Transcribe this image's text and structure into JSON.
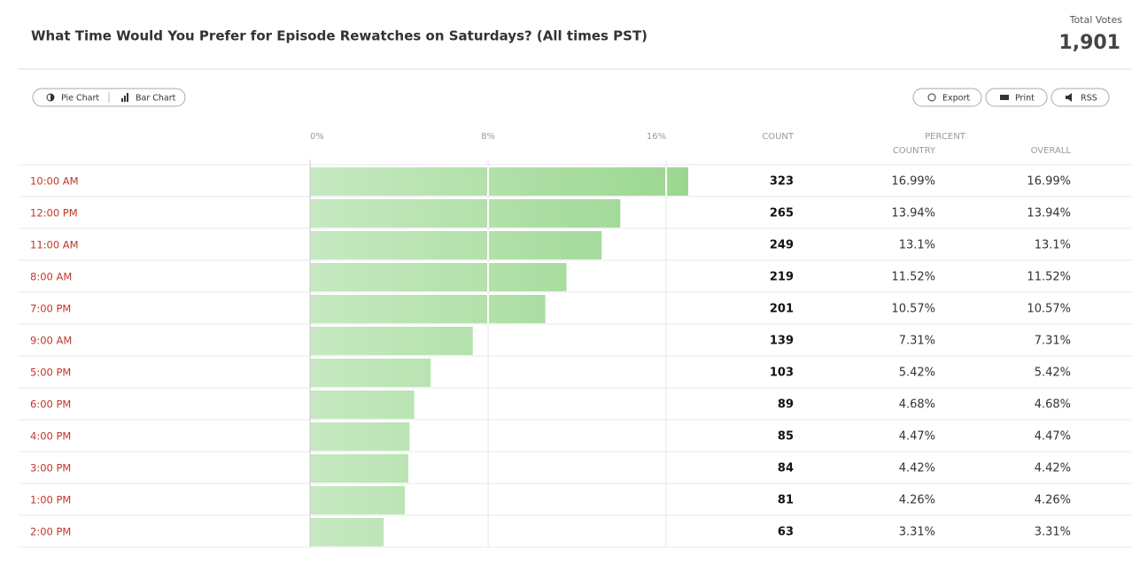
{
  "header": {
    "title": "What Time Would You Prefer for Episode Rewatches on Saturdays? (All times PST)",
    "total_votes_label": "Total Votes",
    "total_votes": "1,901"
  },
  "view_buttons": [
    "Pie Chart",
    "Bar Chart"
  ],
  "action_buttons": [
    "Export",
    "Print",
    "RSS"
  ],
  "columns": {
    "count": "COUNT",
    "percent": "PERCENT",
    "country": "COUNTRY",
    "overall": "OVERALL"
  },
  "chart_data": {
    "type": "bar",
    "orientation": "horizontal",
    "categories": [
      "10:00 AM",
      "12:00 PM",
      "11:00 AM",
      "8:00 AM",
      "7:00 PM",
      "9:00 AM",
      "5:00 PM",
      "6:00 PM",
      "4:00 PM",
      "3:00 PM",
      "1:00 PM",
      "2:00 PM"
    ],
    "values": [
      16.99,
      13.94,
      13.1,
      11.52,
      10.57,
      7.31,
      5.42,
      4.68,
      4.47,
      4.42,
      4.26,
      3.31
    ],
    "value_labels": [
      "16.99%",
      "13.94%",
      "13.1%",
      "11.52%",
      "10.57%",
      "7.31%",
      "5.42%",
      "4.68%",
      "4.47%",
      "4.42%",
      "4.26%",
      "3.31%"
    ],
    "counts": [
      323,
      265,
      249,
      219,
      201,
      139,
      103,
      89,
      85,
      84,
      81,
      63
    ],
    "country_labels": [
      "16.99%",
      "13.94%",
      "13.1%",
      "11.52%",
      "10.57%",
      "7.31%",
      "5.42%",
      "4.68%",
      "4.47%",
      "4.42%",
      "4.26%",
      "3.31%"
    ],
    "xlim": [
      0,
      16.99
    ],
    "xticks": [
      {
        "value": 0,
        "label": "0%"
      },
      {
        "value": 8,
        "label": "8%"
      },
      {
        "value": 16,
        "label": "16%"
      }
    ],
    "color_start": "#c6e9c1",
    "color_end": "#9bd790",
    "grid": true
  }
}
